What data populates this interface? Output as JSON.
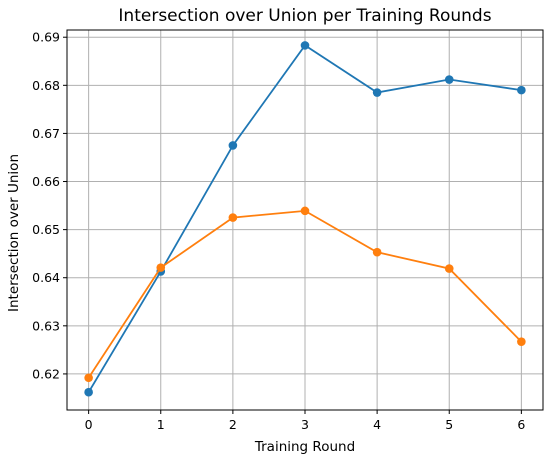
{
  "chart_data": {
    "type": "line",
    "title": "Intersection over Union per Training Rounds",
    "xlabel": "Training Round",
    "ylabel": "Intersection over Union",
    "x": [
      0,
      1,
      2,
      3,
      4,
      5,
      6
    ],
    "xticks": [
      "0",
      "1",
      "2",
      "3",
      "4",
      "5",
      "6"
    ],
    "yticks": [
      "0.62",
      "0.63",
      "0.64",
      "0.65",
      "0.66",
      "0.67",
      "0.68",
      "0.69"
    ],
    "xlim": [
      -0.3,
      6.3
    ],
    "ylim": [
      0.6125,
      0.6915
    ],
    "grid": true,
    "series": [
      {
        "color": "#1f77b4",
        "marker": "circle",
        "values": [
          0.6162,
          0.6413,
          0.6675,
          0.6883,
          0.6785,
          0.6812,
          0.679
        ]
      },
      {
        "color": "#ff7f0e",
        "marker": "circle",
        "values": [
          0.6192,
          0.6421,
          0.6525,
          0.6539,
          0.6453,
          0.6419,
          0.6267
        ]
      }
    ]
  }
}
